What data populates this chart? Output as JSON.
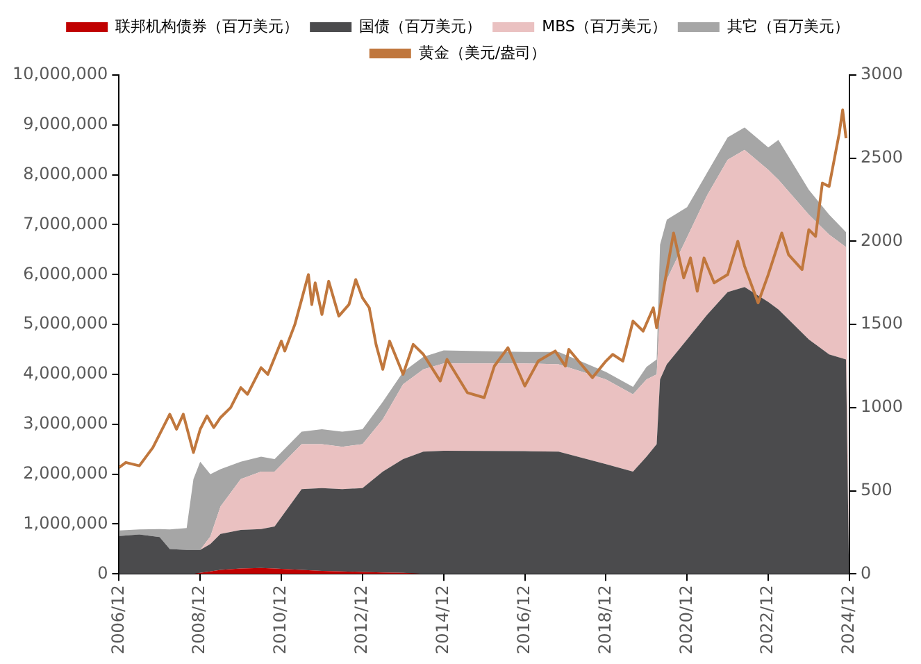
{
  "chart_data": {
    "type": "area",
    "stacked": true,
    "legend": "top",
    "x": [
      "2006-12",
      "2007-06",
      "2007-12",
      "2008-03",
      "2008-08",
      "2008-10",
      "2008-12",
      "2009-03",
      "2009-06",
      "2009-12",
      "2010-06",
      "2010-10",
      "2011-06",
      "2011-12",
      "2012-06",
      "2012-12",
      "2013-06",
      "2013-12",
      "2014-06",
      "2014-12",
      "2016-12",
      "2017-10",
      "2018-12",
      "2019-08",
      "2019-12",
      "2020-03",
      "2020-04",
      "2020-06",
      "2020-12",
      "2021-06",
      "2021-12",
      "2022-05",
      "2022-12",
      "2023-03",
      "2023-12",
      "2024-06",
      "2024-11",
      "2024-11-28"
    ],
    "series": [
      {
        "name": "联邦机构债券（百万美元）",
        "color": "#c00000",
        "values": [
          0,
          0,
          0,
          0,
          0,
          0,
          20000,
          50000,
          80000,
          110000,
          120000,
          110000,
          80000,
          60000,
          50000,
          40000,
          30000,
          20000,
          0,
          0,
          0,
          0,
          0,
          0,
          0,
          0,
          0,
          0,
          0,
          0,
          0,
          0,
          0,
          0,
          0,
          0,
          0,
          0
        ]
      },
      {
        "name": "国债（百万美元）",
        "color": "#4b4b4d",
        "values": [
          760000,
          790000,
          740000,
          500000,
          480000,
          480000,
          460000,
          550000,
          720000,
          770000,
          780000,
          840000,
          1620000,
          1660000,
          1650000,
          1680000,
          2020000,
          2280000,
          2450000,
          2470000,
          2460000,
          2450000,
          2200000,
          2050000,
          2350000,
          2600000,
          3900000,
          4200000,
          4700000,
          5200000,
          5650000,
          5750000,
          5450000,
          5300000,
          4700000,
          4400000,
          4300000,
          0
        ]
      },
      {
        "name": "MBS（百万美元）",
        "color": "#eac1c1",
        "values": [
          0,
          0,
          0,
          0,
          0,
          0,
          0,
          150000,
          550000,
          1020000,
          1150000,
          1100000,
          900000,
          880000,
          850000,
          880000,
          1050000,
          1500000,
          1650000,
          1750000,
          1760000,
          1750000,
          1700000,
          1550000,
          1550000,
          1400000,
          1400000,
          1700000,
          2050000,
          2400000,
          2650000,
          2750000,
          2650000,
          2600000,
          2500000,
          2400000,
          2250000,
          0
        ]
      },
      {
        "name": "其它（百万美元）",
        "color": "#a6a6a6",
        "values": [
          110000,
          100000,
          160000,
          390000,
          440000,
          1420000,
          1770000,
          1250000,
          750000,
          350000,
          300000,
          250000,
          250000,
          300000,
          300000,
          300000,
          350000,
          250000,
          250000,
          260000,
          230000,
          250000,
          150000,
          150000,
          250000,
          300000,
          1300000,
          1200000,
          600000,
          450000,
          450000,
          450000,
          450000,
          800000,
          500000,
          400000,
          300000,
          0
        ]
      },
      {
        "name": "黄金（美元/盎司）",
        "type": "line",
        "axis": "y2",
        "color": "#c0773d",
        "x": [
          "2006-12",
          "2007-02",
          "2007-06",
          "2007-10",
          "2008-03",
          "2008-05",
          "2008-07",
          "2008-10",
          "2008-12",
          "2009-02",
          "2009-04",
          "2009-06",
          "2009-09",
          "2009-12",
          "2010-02",
          "2010-06",
          "2010-08",
          "2010-12",
          "2011-01",
          "2011-04",
          "2011-08",
          "2011-09",
          "2011-10",
          "2011-12",
          "2012-02",
          "2012-05",
          "2012-08",
          "2012-10",
          "2012-12",
          "2013-02",
          "2013-04",
          "2013-06",
          "2013-08",
          "2013-12",
          "2014-03",
          "2014-06",
          "2014-11",
          "2015-01",
          "2015-07",
          "2015-12",
          "2016-03",
          "2016-07",
          "2016-12",
          "2017-04",
          "2017-09",
          "2017-12",
          "2018-01",
          "2018-08",
          "2018-12",
          "2019-02",
          "2019-05",
          "2019-08",
          "2019-11",
          "2020-02",
          "2020-03",
          "2020-08",
          "2020-11",
          "2021-01",
          "2021-03",
          "2021-05",
          "2021-08",
          "2021-12",
          "2022-03",
          "2022-05",
          "2022-09",
          "2022-12",
          "2023-04",
          "2023-06",
          "2023-10",
          "2023-12",
          "2024-02",
          "2024-04",
          "2024-06",
          "2024-09",
          "2024-10",
          "2024-11"
        ],
        "values": [
          640,
          670,
          650,
          760,
          960,
          870,
          960,
          730,
          870,
          950,
          880,
          940,
          1000,
          1120,
          1080,
          1240,
          1200,
          1400,
          1340,
          1500,
          1800,
          1620,
          1750,
          1560,
          1760,
          1550,
          1620,
          1770,
          1660,
          1600,
          1380,
          1230,
          1400,
          1200,
          1380,
          1320,
          1160,
          1290,
          1090,
          1060,
          1250,
          1360,
          1130,
          1280,
          1340,
          1250,
          1350,
          1180,
          1280,
          1320,
          1280,
          1520,
          1460,
          1600,
          1480,
          2050,
          1780,
          1900,
          1700,
          1900,
          1750,
          1800,
          2000,
          1850,
          1630,
          1800,
          2050,
          1920,
          1830,
          2070,
          2030,
          2350,
          2330,
          2650,
          2790,
          2620
        ]
      }
    ],
    "xlim": [
      "2006-12",
      "2024-12"
    ],
    "xticks": [
      {
        "value": "2006-12",
        "label": "2006/12"
      },
      {
        "value": "2008-12",
        "label": "2008/12"
      },
      {
        "value": "2010-12",
        "label": "2010/12"
      },
      {
        "value": "2012-12",
        "label": "2012/12"
      },
      {
        "value": "2014-12",
        "label": "2014/12"
      },
      {
        "value": "2016-12",
        "label": "2016/12"
      },
      {
        "value": "2018-12",
        "label": "2018/12"
      },
      {
        "value": "2020-12",
        "label": "2020/12"
      },
      {
        "value": "2022-12",
        "label": "2022/12"
      },
      {
        "value": "2024-12",
        "label": "2024/12"
      }
    ],
    "ylim": [
      0,
      10000000
    ],
    "yticks": [
      0,
      {
        "value": 1000000,
        "label": "1,000,000"
      },
      {
        "value": 2000000,
        "label": "2,000,000"
      },
      {
        "value": 3000000,
        "label": "3,000,000"
      },
      {
        "value": 4000000,
        "label": "4,000,000"
      },
      {
        "value": 5000000,
        "label": "5,000,000"
      },
      {
        "value": 6000000,
        "label": "6,000,000"
      },
      {
        "value": 7000000,
        "label": "7,000,000"
      },
      {
        "value": 8000000,
        "label": "8,000,000"
      },
      {
        "value": 9000000,
        "label": "9,000,000"
      },
      {
        "value": 10000000,
        "label": "10,000,000"
      }
    ],
    "y2lim": [
      0,
      3000
    ],
    "y2ticks": [
      0,
      500,
      1000,
      1500,
      2000,
      2500,
      3000
    ]
  }
}
